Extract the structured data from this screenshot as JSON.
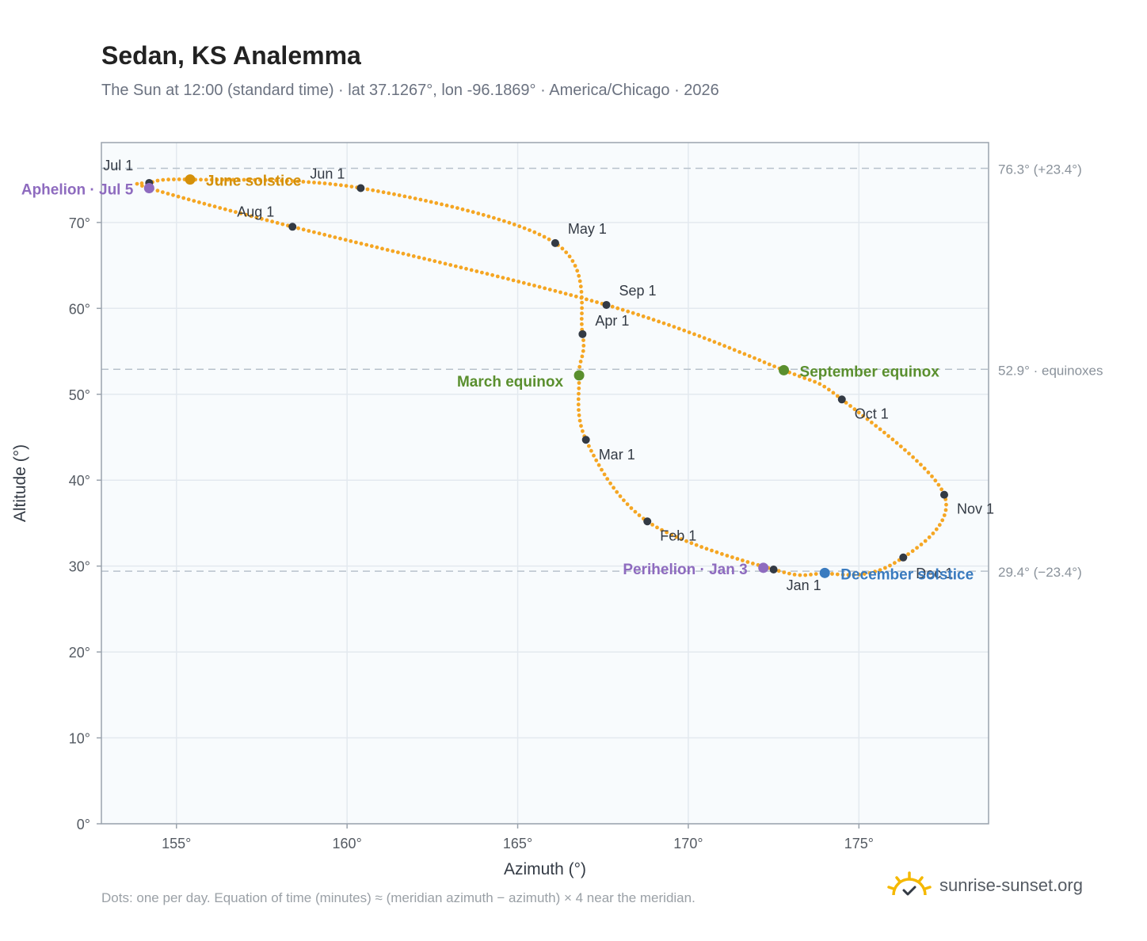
{
  "header": {
    "title": "Sedan, KS Analemma",
    "subtitle": "The Sun at 12:00 (standard time) · lat 37.1267°, lon -96.1869° · America/Chicago · 2026"
  },
  "footer": {
    "note": "Dots: one per day. Equation of time (minutes) ≈ (meridian azimuth − azimuth) × 4 near the meridian.",
    "brand": "sunrise-sunset.org"
  },
  "colors": {
    "path": "#f5a623",
    "month_marker": "#333a44",
    "solstice_june": "#d4900a",
    "solstice_december": "#3a7bbf",
    "equinox": "#5a8f2e",
    "apsis": "#8e6bbf",
    "reference_line": "#b8c2cc",
    "plot_bg": "#f8fbfd",
    "grid": "#e3e9ef"
  },
  "chart_data": {
    "type": "scatter",
    "xlabel": "Azimuth (°)",
    "ylabel": "Altitude (°)",
    "xlim": [
      152.8,
      178.8
    ],
    "ylim": [
      0,
      79.3
    ],
    "x_ticks": [
      155,
      160,
      165,
      170,
      175
    ],
    "y_ticks": [
      0,
      10,
      20,
      30,
      40,
      50,
      60,
      70
    ],
    "x_tick_labels": [
      "155°",
      "160°",
      "165°",
      "170°",
      "175°"
    ],
    "y_tick_labels": [
      "0°",
      "10°",
      "20°",
      "30°",
      "40°",
      "50°",
      "60°",
      "70°"
    ],
    "grid": true,
    "path_anchors": [
      {
        "az": 172.5,
        "alt": 29.6
      },
      {
        "az": 168.8,
        "alt": 35.2
      },
      {
        "az": 167.0,
        "alt": 44.7
      },
      {
        "az": 166.8,
        "alt": 52.2
      },
      {
        "az": 166.9,
        "alt": 57.0
      },
      {
        "az": 166.1,
        "alt": 67.6
      },
      {
        "az": 160.4,
        "alt": 74.0
      },
      {
        "az": 155.4,
        "alt": 75.0
      },
      {
        "az": 154.2,
        "alt": 74.6
      },
      {
        "az": 154.2,
        "alt": 74.0
      },
      {
        "az": 158.4,
        "alt": 69.5
      },
      {
        "az": 167.6,
        "alt": 60.4
      },
      {
        "az": 172.8,
        "alt": 52.8
      },
      {
        "az": 174.5,
        "alt": 49.4
      },
      {
        "az": 177.5,
        "alt": 38.3
      },
      {
        "az": 176.3,
        "alt": 31.0
      },
      {
        "az": 174.0,
        "alt": 29.2
      },
      {
        "az": 172.5,
        "alt": 29.6
      }
    ],
    "month_markers": [
      {
        "label": "Jan 1",
        "az": 172.5,
        "alt": 29.6
      },
      {
        "label": "Feb 1",
        "az": 168.8,
        "alt": 35.2
      },
      {
        "label": "Mar 1",
        "az": 167.0,
        "alt": 44.7
      },
      {
        "label": "Apr 1",
        "az": 166.9,
        "alt": 57.0
      },
      {
        "label": "May 1",
        "az": 166.1,
        "alt": 67.6
      },
      {
        "label": "Jun 1",
        "az": 160.4,
        "alt": 74.0
      },
      {
        "label": "Jul 1",
        "az": 154.2,
        "alt": 74.6
      },
      {
        "label": "Aug 1",
        "az": 158.4,
        "alt": 69.5
      },
      {
        "label": "Sep 1",
        "az": 167.6,
        "alt": 60.4
      },
      {
        "label": "Oct 1",
        "az": 174.5,
        "alt": 49.4
      },
      {
        "label": "Nov 1",
        "az": 177.5,
        "alt": 38.3
      },
      {
        "label": "Dec 1",
        "az": 176.3,
        "alt": 31.0
      }
    ],
    "events": [
      {
        "label": "June solstice",
        "az": 155.4,
        "alt": 75.0,
        "kind": "solstice_june"
      },
      {
        "label": "December solstice",
        "az": 174.0,
        "alt": 29.2,
        "kind": "solstice_december"
      },
      {
        "label": "March equinox",
        "az": 166.8,
        "alt": 52.2,
        "kind": "equinox"
      },
      {
        "label": "September equinox",
        "az": 172.8,
        "alt": 52.8,
        "kind": "equinox"
      },
      {
        "label": "Aphelion · Jul 5",
        "az": 154.2,
        "alt": 74.0,
        "kind": "apsis"
      },
      {
        "label": "Perihelion · Jan 3",
        "az": 172.2,
        "alt": 29.8,
        "kind": "apsis"
      }
    ],
    "reference_lines": [
      {
        "alt": 76.3,
        "label": "76.3° (+23.4°)"
      },
      {
        "alt": 52.9,
        "label": "52.9° · equinoxes"
      },
      {
        "alt": 29.4,
        "label": "29.4° (−23.4°)"
      }
    ]
  }
}
